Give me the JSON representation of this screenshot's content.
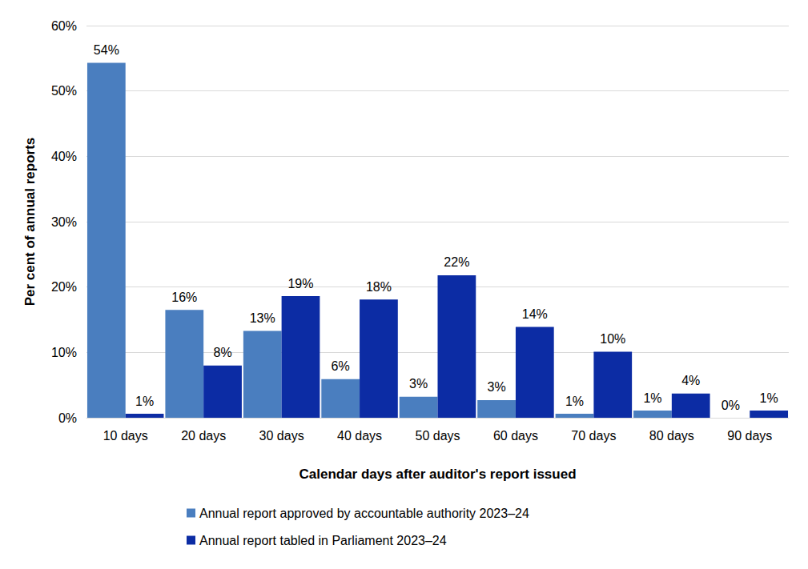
{
  "chart_data": {
    "type": "bar",
    "categories": [
      "10 days",
      "20 days",
      "30 days",
      "40 days",
      "50 days",
      "60 days",
      "70 days",
      "80 days",
      "90 days"
    ],
    "series": [
      {
        "name": "Annual report approved by accountable authority 2023–24",
        "color": "#4a7ebf",
        "values": [
          54.3,
          16.5,
          13.3,
          5.9,
          3.2,
          2.7,
          0.6,
          1.1,
          0
        ],
        "value_labels": [
          "54%",
          "16%",
          "13%",
          "6%",
          "3%",
          "3%",
          "1%",
          "1%",
          "0%"
        ]
      },
      {
        "name": "Annual report tabled in Parliament 2023–24",
        "color": "#0c2ca4",
        "values": [
          0.6,
          8.0,
          18.6,
          18.1,
          21.8,
          13.9,
          10.1,
          3.7,
          1.1
        ],
        "value_labels": [
          "1%",
          "8%",
          "19%",
          "18%",
          "22%",
          "14%",
          "10%",
          "4%",
          "1%"
        ]
      }
    ],
    "xlabel": "Calendar days after auditor's report issued",
    "ylabel": "Per cent of annual reports",
    "ylim": [
      0,
      60
    ],
    "yticks": [
      {
        "value": 0,
        "label": "0%"
      },
      {
        "value": 10,
        "label": "10%"
      },
      {
        "value": 20,
        "label": "20%"
      },
      {
        "value": 30,
        "label": "30%"
      },
      {
        "value": 40,
        "label": "40%"
      },
      {
        "value": 50,
        "label": "50%"
      },
      {
        "value": 60,
        "label": "60%"
      }
    ],
    "grid": true,
    "legend": "bottom",
    "data_labels": true
  }
}
